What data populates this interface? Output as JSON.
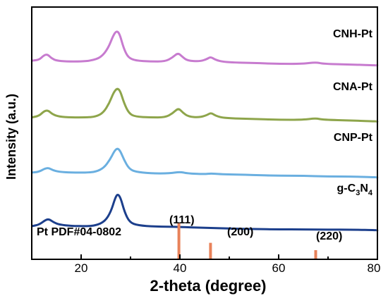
{
  "chart_data": {
    "type": "line",
    "xlabel": "2-theta (degree)",
    "ylabel": "Intensity (a.u.)",
    "xlim": [
      10,
      80
    ],
    "xticks": [
      20,
      40,
      60,
      80
    ],
    "y_tick_labels_shown": false,
    "grid": false,
    "series": [
      {
        "name": "CNH-Pt",
        "color": "#c77bcf",
        "baseline": 12.5,
        "points": [
          [
            10,
            12.6
          ],
          [
            11.5,
            12.65
          ],
          [
            12.5,
            12.95
          ],
          [
            13.2,
            13.0
          ],
          [
            14.0,
            12.75
          ],
          [
            15,
            12.6
          ],
          [
            17,
            12.55
          ],
          [
            20,
            12.55
          ],
          [
            22,
            12.6
          ],
          [
            24,
            12.8
          ],
          [
            25.5,
            13.4
          ],
          [
            26.5,
            14.2
          ],
          [
            27.2,
            14.5
          ],
          [
            27.8,
            14.3
          ],
          [
            28.6,
            13.4
          ],
          [
            29.5,
            12.8
          ],
          [
            31,
            12.6
          ],
          [
            34,
            12.55
          ],
          [
            37,
            12.55
          ],
          [
            38.5,
            12.8
          ],
          [
            39.6,
            13.1
          ],
          [
            40.5,
            12.85
          ],
          [
            41.5,
            12.6
          ],
          [
            44,
            12.55
          ],
          [
            45.5,
            12.7
          ],
          [
            46.2,
            12.85
          ],
          [
            47.2,
            12.65
          ],
          [
            49,
            12.5
          ],
          [
            55,
            12.45
          ],
          [
            60,
            12.4
          ],
          [
            65,
            12.4
          ],
          [
            67.5,
            12.5
          ],
          [
            69,
            12.4
          ],
          [
            75,
            12.35
          ],
          [
            80,
            12.3
          ]
        ]
      },
      {
        "name": "CNA-Pt",
        "color": "#8ea54b",
        "baseline": 8.9,
        "points": [
          [
            10,
            9.0
          ],
          [
            11.5,
            9.1
          ],
          [
            12.5,
            9.4
          ],
          [
            13.3,
            9.45
          ],
          [
            14.2,
            9.2
          ],
          [
            15.5,
            9.05
          ],
          [
            18,
            9.0
          ],
          [
            21,
            9.0
          ],
          [
            23,
            9.05
          ],
          [
            24.5,
            9.3
          ],
          [
            25.7,
            9.9
          ],
          [
            26.6,
            10.6
          ],
          [
            27.3,
            10.85
          ],
          [
            27.9,
            10.7
          ],
          [
            28.7,
            9.9
          ],
          [
            29.7,
            9.25
          ],
          [
            31,
            9.05
          ],
          [
            34,
            9.0
          ],
          [
            37,
            9.0
          ],
          [
            38.5,
            9.25
          ],
          [
            39.7,
            9.6
          ],
          [
            40.6,
            9.3
          ],
          [
            41.7,
            9.05
          ],
          [
            44,
            9.0
          ],
          [
            45.5,
            9.15
          ],
          [
            46.3,
            9.3
          ],
          [
            47.3,
            9.1
          ],
          [
            49,
            8.95
          ],
          [
            55,
            8.9
          ],
          [
            60,
            8.85
          ],
          [
            65,
            8.85
          ],
          [
            67.5,
            8.95
          ],
          [
            69,
            8.85
          ],
          [
            75,
            8.8
          ],
          [
            80,
            8.75
          ]
        ]
      },
      {
        "name": "CNP-Pt",
        "color": "#6aafe0",
        "baseline": 5.4,
        "points": [
          [
            10,
            5.5
          ],
          [
            11.5,
            5.55
          ],
          [
            12.6,
            5.75
          ],
          [
            13.4,
            5.8
          ],
          [
            14.3,
            5.65
          ],
          [
            15.5,
            5.55
          ],
          [
            18,
            5.5
          ],
          [
            21,
            5.5
          ],
          [
            23,
            5.55
          ],
          [
            24.6,
            5.8
          ],
          [
            25.8,
            6.3
          ],
          [
            26.7,
            6.85
          ],
          [
            27.3,
            7.05
          ],
          [
            27.9,
            6.9
          ],
          [
            28.7,
            6.3
          ],
          [
            29.7,
            5.75
          ],
          [
            31,
            5.55
          ],
          [
            34,
            5.45
          ],
          [
            38,
            5.45
          ],
          [
            40,
            5.55
          ],
          [
            41.5,
            5.45
          ],
          [
            45,
            5.4
          ],
          [
            46.3,
            5.45
          ],
          [
            48,
            5.4
          ],
          [
            55,
            5.35
          ],
          [
            60,
            5.3
          ],
          [
            65,
            5.3
          ],
          [
            70,
            5.25
          ],
          [
            75,
            5.25
          ],
          [
            80,
            5.2
          ]
        ]
      },
      {
        "name": "g-C3N4",
        "label_parts": [
          "g-C",
          "3",
          "N",
          "4"
        ],
        "color": "#1c3f8c",
        "baseline": 2.0,
        "points": [
          [
            10,
            2.1
          ],
          [
            11.5,
            2.2
          ],
          [
            12.8,
            2.5
          ],
          [
            13.5,
            2.55
          ],
          [
            14.4,
            2.35
          ],
          [
            15.6,
            2.2
          ],
          [
            18,
            2.12
          ],
          [
            21,
            2.1
          ],
          [
            23,
            2.15
          ],
          [
            24.8,
            2.4
          ],
          [
            26.0,
            3.0
          ],
          [
            26.9,
            3.9
          ],
          [
            27.4,
            4.15
          ],
          [
            28.0,
            3.9
          ],
          [
            28.8,
            3.0
          ],
          [
            29.8,
            2.35
          ],
          [
            31.5,
            2.15
          ],
          [
            35,
            2.08
          ],
          [
            40,
            2.05
          ],
          [
            45,
            2.0
          ],
          [
            50,
            1.95
          ],
          [
            55,
            1.92
          ],
          [
            60,
            1.9
          ],
          [
            65,
            1.9
          ],
          [
            70,
            1.88
          ],
          [
            75,
            1.88
          ],
          [
            80,
            1.85
          ]
        ]
      }
    ],
    "reference": {
      "label": "Pt PDF#04-0802",
      "color": "#e8825a",
      "lines": [
        {
          "x": 39.8,
          "hkl": "(111)",
          "height": 1.0
        },
        {
          "x": 46.2,
          "hkl": "(200)",
          "height": 0.45
        },
        {
          "x": 67.5,
          "hkl": "(220)",
          "height": 0.25
        }
      ]
    }
  }
}
